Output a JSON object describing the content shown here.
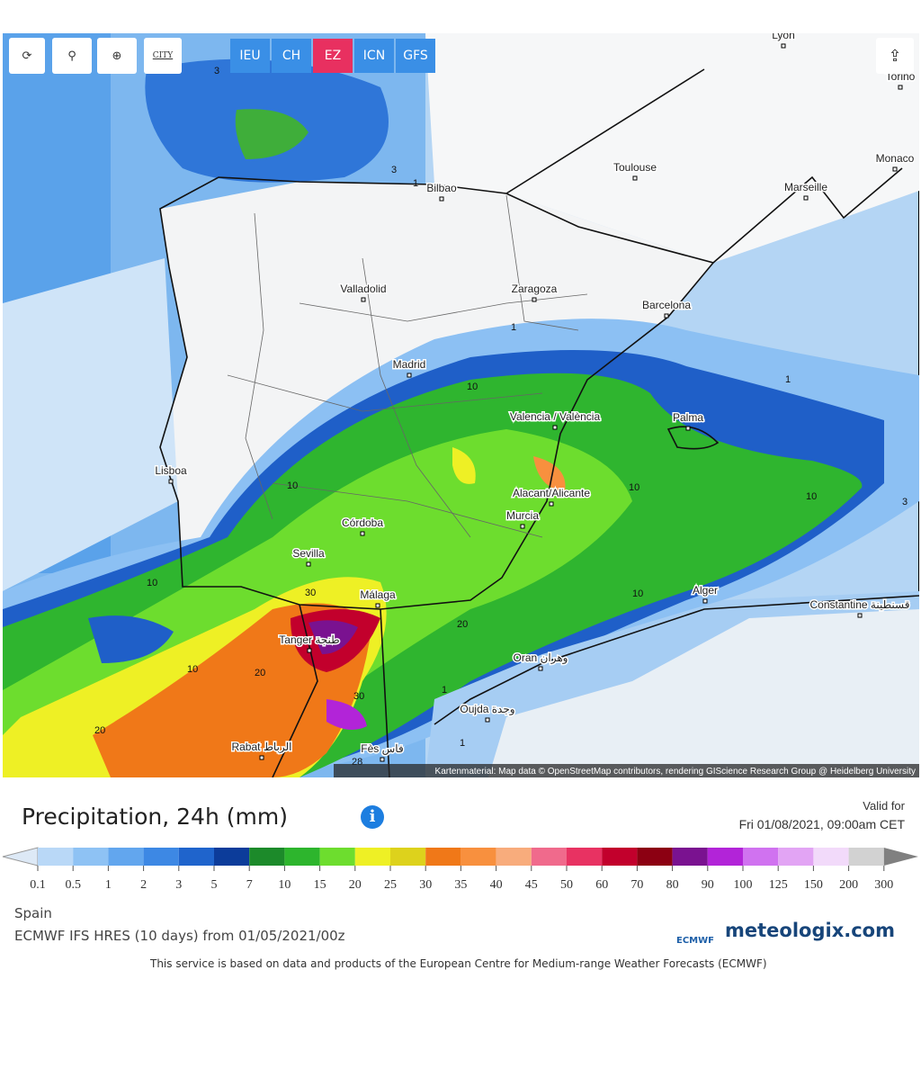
{
  "toolbar": {
    "icon_city": "CITY",
    "models": [
      "IEU",
      "CH",
      "EZ",
      "ICN",
      "GFS"
    ],
    "active_model": "EZ"
  },
  "map": {
    "cities": [
      "Lyon",
      "Torino",
      "Monaco",
      "Toulouse",
      "Marseille",
      "Bilbao",
      "Valladolid",
      "Zaragoza",
      "Barcelona",
      "Madrid",
      "Valencia / València",
      "Palma",
      "Lisboa",
      "Alacant/Alicante",
      "Murcia",
      "Córdoba",
      "Sevilla",
      "Alger",
      "Constantine قسنطينة",
      "Málaga",
      "Tanger طنجة",
      "Oran وهران",
      "Oujda وجدة",
      "Rabat الرباط",
      "Fès فاس"
    ],
    "contour_labels": [
      "3",
      "3",
      "1",
      "1",
      "1",
      "10",
      "10",
      "10",
      "10",
      "10",
      "10",
      "10",
      "20",
      "30",
      "30",
      "20",
      "1",
      "3",
      "1",
      "20",
      "28"
    ],
    "attribution": "Kartenmaterial: Map data © OpenStreetMap contributors, rendering GIScience Research Group @ Heidelberg University"
  },
  "header": {
    "title": "Precipitation, 24h (mm)",
    "valid_label": "Valid for",
    "valid_time": "Fri 01/08/2021, 09:00am CET"
  },
  "legend": {
    "labels": [
      "0.1",
      "0.5",
      "1",
      "2",
      "3",
      "5",
      "7",
      "10",
      "15",
      "20",
      "25",
      "30",
      "35",
      "40",
      "45",
      "50",
      "60",
      "70",
      "80",
      "90",
      "100",
      "125",
      "150",
      "200",
      "300"
    ],
    "colors": [
      "#b9d8f7",
      "#8ec2f4",
      "#62a6ee",
      "#3d88e4",
      "#1f64cc",
      "#0c3c9a",
      "#1c8a2a",
      "#2db52d",
      "#6ddd2e",
      "#eef025",
      "#ddd21c",
      "#f07818",
      "#f8903e",
      "#f8ac7c",
      "#f06a8c",
      "#e83262",
      "#c2002c",
      "#8c0012",
      "#7a1290",
      "#b224d8",
      "#d072f0",
      "#e2a4f4",
      "#f2dafa",
      "#d2d2d2"
    ]
  },
  "footer": {
    "region": "Spain",
    "model_run": "ECMWF IFS HRES (10 days) from 01/05/2021/00z",
    "ecmwf": "ECMWF",
    "brand": "meteologix.com",
    "notice": "This service is based on data and products of the European Centre for Medium-range Weather Forecasts (ECMWF)"
  }
}
